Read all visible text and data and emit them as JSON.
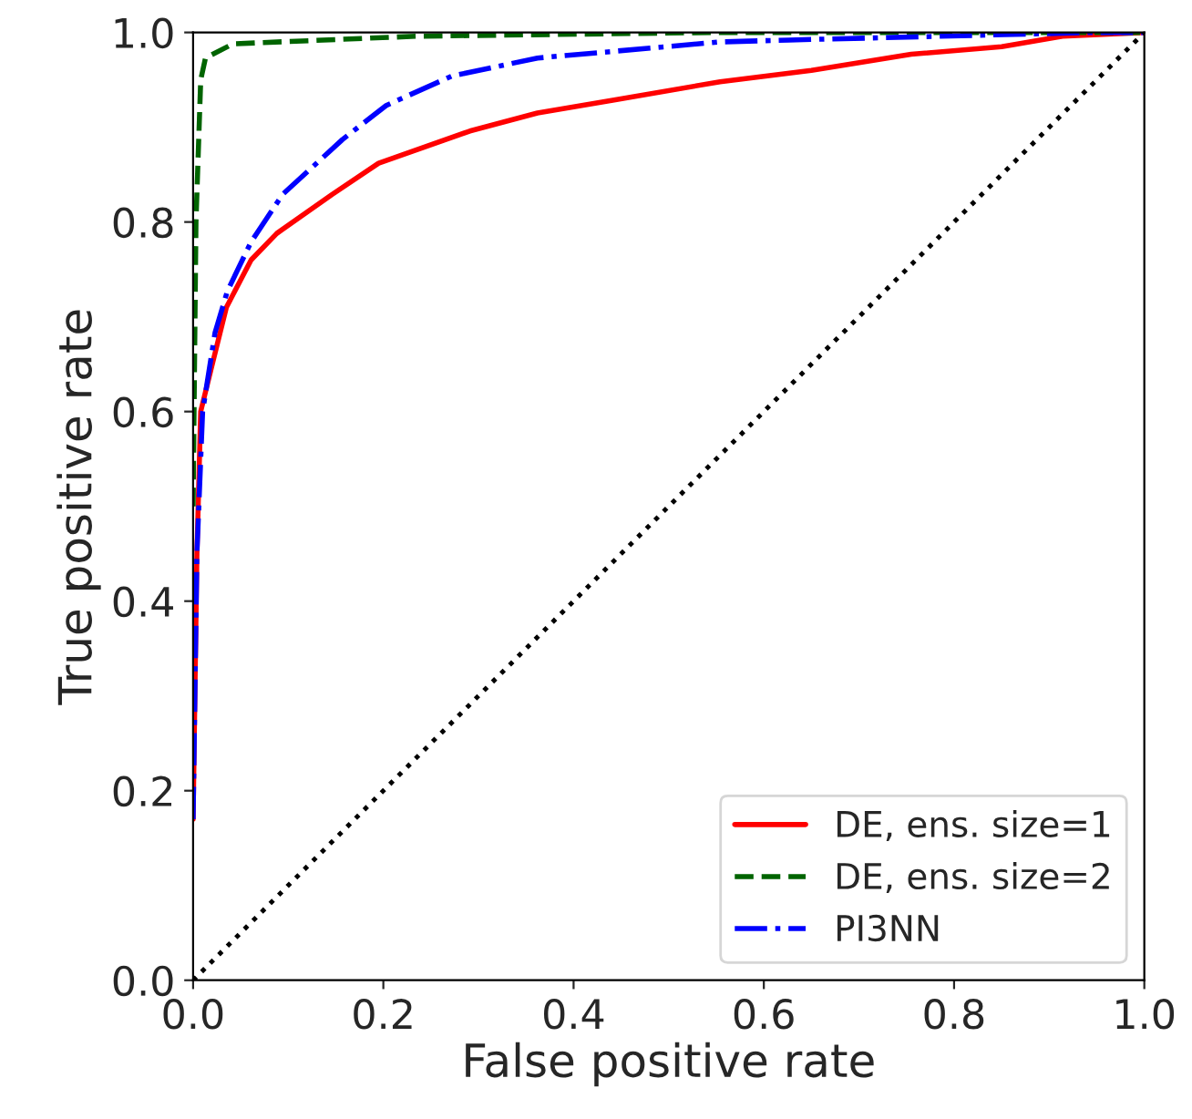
{
  "chart_data": {
    "type": "line",
    "xlabel": "False positive rate",
    "ylabel": "True positive rate",
    "xlim": [
      0,
      1
    ],
    "ylim": [
      0,
      1
    ],
    "xticks": [
      {
        "value": 0,
        "label": "0.0"
      },
      0.2,
      0.4,
      0.6,
      0.8,
      {
        "value": 1,
        "label": "1.0"
      }
    ],
    "yticks": [
      {
        "value": 0,
        "label": "0.0"
      },
      0.2,
      0.4,
      0.6,
      0.8,
      {
        "value": 1,
        "label": "1.0"
      }
    ],
    "grid": false,
    "legend": "bottom right",
    "series": [
      {
        "name": "DE, ens. size=1",
        "color": "#ff0000",
        "line_style": "solid",
        "x": [
          0,
          0.004,
          0.008,
          0.017,
          0.035,
          0.061,
          0.088,
          0.146,
          0.195,
          0.291,
          0.362,
          0.444,
          0.554,
          0.65,
          0.755,
          0.85,
          0.914,
          1
        ],
        "values": [
          0.17,
          0.45,
          0.6,
          0.637,
          0.71,
          0.76,
          0.788,
          0.829,
          0.862,
          0.896,
          0.915,
          0.929,
          0.948,
          0.96,
          0.977,
          0.985,
          0.996,
          1.0
        ]
      },
      {
        "name": "DE, ens. size=2",
        "color": "#006400",
        "line_style": "dashed",
        "x": [
          0,
          0.003,
          0.008,
          0.013,
          0.042,
          0.234,
          0.55,
          1
        ],
        "values": [
          0.5,
          0.8,
          0.95,
          0.973,
          0.988,
          0.996,
          1.0,
          1.0
        ]
      },
      {
        "name": "PI3NN",
        "color": "#0000ff",
        "line_style": "dashdot",
        "x": [
          0,
          0.004,
          0.01,
          0.023,
          0.036,
          0.061,
          0.094,
          0.157,
          0.203,
          0.272,
          0.362,
          0.554,
          0.626,
          0.946,
          1
        ],
        "values": [
          0.17,
          0.45,
          0.6,
          0.683,
          0.727,
          0.779,
          0.829,
          0.887,
          0.923,
          0.954,
          0.973,
          0.99,
          0.992,
          1.0,
          1.0
        ]
      },
      {
        "color": "#000000",
        "line_style": "dotted",
        "x": [
          0,
          1
        ],
        "values": [
          0,
          1
        ]
      }
    ]
  }
}
